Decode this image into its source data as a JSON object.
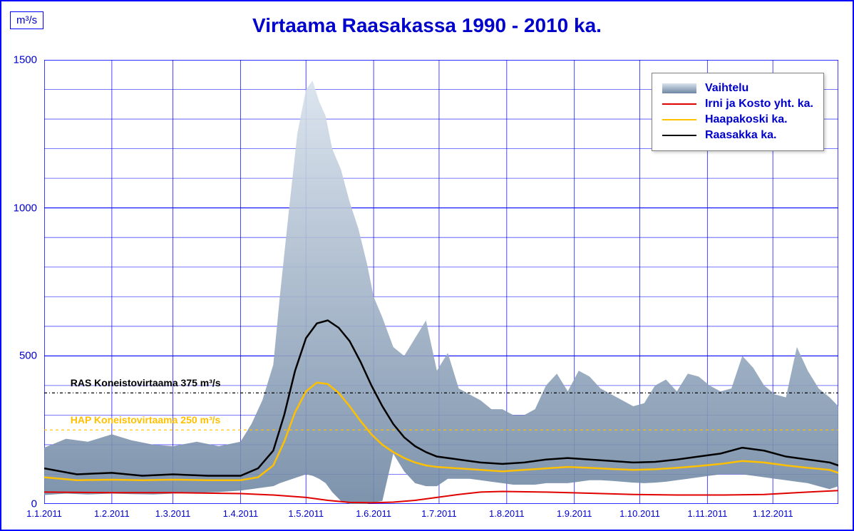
{
  "title": "Virtaama Raasakassa 1990 - 2010 ka.",
  "y_unit": "m³/s",
  "colors": {
    "axis": "#0000ff",
    "grid": "#0000ff",
    "title_text": "#0000cc",
    "tick_text": "#0000cc",
    "background": "#ffffff",
    "range_fill_light": "#d8e2ed",
    "range_fill_dark": "#6f87a3",
    "series_irni": "#e00000",
    "series_haapa": "#ffc000",
    "series_raasakka": "#000000",
    "ref_ras": "#000000",
    "ref_hap": "#ffc000"
  },
  "y_axis": {
    "min": 0,
    "max": 1500,
    "step": 500
  },
  "x_axis": {
    "min_day": 0,
    "max_day": 364,
    "ticks": [
      {
        "day": 0,
        "label": "1.1.2011"
      },
      {
        "day": 31,
        "label": "1.2.2011"
      },
      {
        "day": 59,
        "label": "1.3.2011"
      },
      {
        "day": 90,
        "label": "1.4.2011"
      },
      {
        "day": 120,
        "label": "1.5.2011"
      },
      {
        "day": 151,
        "label": "1.6.2011"
      },
      {
        "day": 181,
        "label": "1.7.2011"
      },
      {
        "day": 212,
        "label": "1.8.2011"
      },
      {
        "day": 243,
        "label": "1.9.2011"
      },
      {
        "day": 273,
        "label": "1.10.2011"
      },
      {
        "day": 304,
        "label": "1.11.2011"
      },
      {
        "day": 334,
        "label": "1.12.2011"
      }
    ]
  },
  "legend": {
    "items": [
      {
        "type": "area",
        "label": "Vaihtelu"
      },
      {
        "type": "line",
        "color_key": "series_irni",
        "label": "Irni ja Kosto yht. ka."
      },
      {
        "type": "line",
        "color_key": "series_haapa",
        "label": "Haapakoski ka."
      },
      {
        "type": "line",
        "color_key": "series_raasakka",
        "label": "Raasakka ka."
      }
    ]
  },
  "reference_lines": [
    {
      "value": 375,
      "label": "RAS Koneistovirtaama 375 m³/s",
      "color_key": "ref_ras",
      "dash": "4,3,1,3",
      "label_x_day": 12
    },
    {
      "value": 250,
      "label": "HAP Koneistovirtaama 250 m³/s",
      "color_key": "ref_hap",
      "dash": "4,4",
      "label_x_day": 12
    }
  ],
  "series_range": {
    "days": [
      0,
      10,
      20,
      31,
      40,
      50,
      59,
      70,
      80,
      90,
      95,
      100,
      105,
      108,
      112,
      116,
      120,
      123,
      126,
      129,
      132,
      136,
      140,
      144,
      148,
      151,
      155,
      160,
      165,
      170,
      175,
      180,
      185,
      190,
      195,
      200,
      205,
      210,
      215,
      220,
      225,
      230,
      235,
      240,
      245,
      250,
      255,
      260,
      265,
      270,
      275,
      280,
      285,
      290,
      295,
      300,
      305,
      310,
      315,
      320,
      325,
      330,
      335,
      340,
      345,
      350,
      355,
      360,
      364
    ],
    "upper": [
      190,
      220,
      210,
      235,
      215,
      200,
      195,
      210,
      195,
      210,
      270,
      350,
      470,
      700,
      980,
      1250,
      1400,
      1430,
      1360,
      1310,
      1200,
      1130,
      1020,
      930,
      810,
      700,
      630,
      530,
      500,
      560,
      620,
      450,
      510,
      390,
      370,
      350,
      320,
      320,
      300,
      300,
      320,
      400,
      440,
      380,
      450,
      430,
      390,
      370,
      350,
      330,
      340,
      400,
      420,
      380,
      440,
      430,
      400,
      380,
      390,
      500,
      460,
      400,
      370,
      360,
      530,
      450,
      390,
      360,
      330
    ],
    "lower": [
      30,
      35,
      32,
      35,
      33,
      32,
      35,
      38,
      40,
      45,
      50,
      55,
      60,
      70,
      80,
      90,
      100,
      95,
      85,
      70,
      40,
      10,
      0,
      0,
      0,
      5,
      10,
      170,
      110,
      70,
      60,
      60,
      85,
      85,
      85,
      80,
      75,
      70,
      65,
      65,
      65,
      70,
      70,
      70,
      75,
      80,
      80,
      78,
      75,
      72,
      70,
      72,
      75,
      80,
      85,
      90,
      95,
      100,
      100,
      100,
      95,
      90,
      85,
      80,
      75,
      70,
      60,
      50,
      60
    ]
  },
  "series_lines": [
    {
      "name": "raasakka",
      "color_key": "series_raasakka",
      "width": 2.5,
      "days": [
        0,
        15,
        31,
        45,
        59,
        75,
        90,
        98,
        105,
        110,
        115,
        120,
        125,
        130,
        135,
        140,
        145,
        150,
        155,
        160,
        165,
        170,
        175,
        180,
        190,
        200,
        210,
        220,
        230,
        240,
        250,
        260,
        270,
        280,
        290,
        300,
        310,
        320,
        330,
        340,
        350,
        360,
        364
      ],
      "values": [
        120,
        100,
        105,
        95,
        100,
        95,
        95,
        120,
        180,
        300,
        450,
        560,
        610,
        620,
        595,
        550,
        480,
        400,
        330,
        270,
        225,
        195,
        175,
        160,
        150,
        140,
        135,
        140,
        150,
        155,
        150,
        145,
        140,
        142,
        150,
        160,
        170,
        190,
        180,
        160,
        150,
        140,
        130
      ]
    },
    {
      "name": "haapakoski",
      "color_key": "series_haapa",
      "width": 2.5,
      "days": [
        0,
        15,
        31,
        45,
        59,
        75,
        90,
        98,
        105,
        110,
        115,
        120,
        125,
        130,
        135,
        140,
        145,
        150,
        155,
        160,
        165,
        170,
        175,
        180,
        190,
        200,
        210,
        220,
        230,
        240,
        250,
        260,
        270,
        280,
        290,
        300,
        310,
        320,
        330,
        340,
        350,
        360,
        364
      ],
      "values": [
        90,
        80,
        82,
        80,
        82,
        80,
        80,
        90,
        130,
        210,
        310,
        380,
        410,
        405,
        375,
        330,
        280,
        235,
        200,
        175,
        155,
        140,
        130,
        125,
        120,
        115,
        110,
        115,
        120,
        125,
        122,
        118,
        115,
        117,
        122,
        128,
        135,
        145,
        140,
        130,
        122,
        115,
        105
      ]
    },
    {
      "name": "irni_kosto",
      "color_key": "series_irni",
      "width": 2,
      "days": [
        0,
        31,
        59,
        90,
        105,
        120,
        130,
        140,
        150,
        160,
        170,
        180,
        190,
        200,
        210,
        230,
        250,
        270,
        290,
        310,
        330,
        350,
        364
      ],
      "values": [
        40,
        38,
        38,
        35,
        30,
        22,
        12,
        5,
        4,
        6,
        12,
        22,
        32,
        40,
        42,
        40,
        36,
        32,
        30,
        30,
        32,
        40,
        45
      ]
    }
  ],
  "typography": {
    "title_fontsize": 28,
    "tick_fontsize": 15,
    "xtick_fontsize": 13,
    "legend_fontsize": 16,
    "ref_label_fontsize": 14
  }
}
